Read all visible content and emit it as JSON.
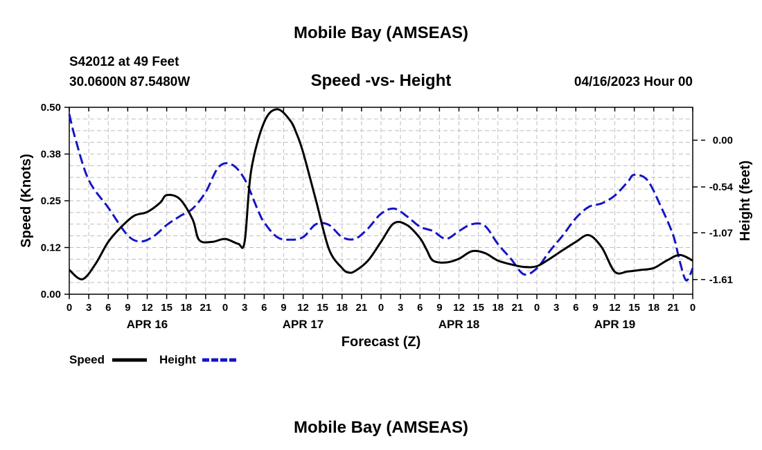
{
  "header": {
    "title": "Mobile Bay (AMSEAS)",
    "station": "S42012 at 49 Feet",
    "coords": "30.0600N  87.5480W",
    "subtitle": "Speed -vs- Height",
    "date": "04/16/2023 Hour 00"
  },
  "footer": {
    "title": "Mobile Bay (AMSEAS)"
  },
  "colors": {
    "speed": "#000000",
    "height": "#1414c8",
    "grid": "#bdbdbd"
  },
  "chart_data": {
    "type": "line",
    "title": "Speed -vs- Height",
    "xlabel": "Forecast (Z)",
    "ylabel": "Speed (Knots)",
    "y2label": "Height (feet)",
    "xlim": [
      0,
      96
    ],
    "ylim": [
      0,
      0.5
    ],
    "y2lim": [
      -1.78,
      0.38
    ],
    "grid": true,
    "x_tick_labels": [
      "0",
      "3",
      "6",
      "9",
      "12",
      "15",
      "18",
      "21",
      "0",
      "3",
      "6",
      "9",
      "12",
      "15",
      "18",
      "21",
      "0",
      "3",
      "6",
      "9",
      "12",
      "15",
      "18",
      "21",
      "0",
      "3",
      "6",
      "9",
      "12",
      "15",
      "18",
      "21",
      "0"
    ],
    "y_ticks": [
      "0.00",
      "0.12",
      "0.25",
      "0.38",
      "0.50"
    ],
    "y_tick_values": [
      0,
      0.125,
      0.25,
      0.375,
      0.5
    ],
    "y2_ticks": [
      "0.00",
      "-0.54",
      "-1.07",
      "-1.61"
    ],
    "y2_tick_values": [
      0,
      -0.54,
      -1.07,
      -1.61
    ],
    "day_labels": [
      {
        "label": "APR 16",
        "hour": 12
      },
      {
        "label": "APR 17",
        "hour": 36
      },
      {
        "label": "APR 18",
        "hour": 60
      },
      {
        "label": "APR 19",
        "hour": 84
      }
    ],
    "legend": [
      {
        "name": "Speed"
      },
      {
        "name": "Height"
      }
    ],
    "series": [
      {
        "name": "Speed",
        "axis": "left",
        "style": "solid",
        "x": [
          0,
          2,
          4,
          6,
          8,
          10,
          12,
          14,
          15,
          17,
          19,
          20,
          22,
          24,
          26,
          27,
          28,
          30,
          32,
          34,
          35,
          36,
          38,
          40,
          42,
          43,
          44,
          46,
          48,
          50,
          52,
          54,
          55,
          56,
          58,
          60,
          62,
          64,
          66,
          68,
          70,
          72,
          74,
          76,
          78,
          80,
          82,
          84,
          86,
          88,
          90,
          92,
          94,
          96
        ],
        "y": [
          0.065,
          0.04,
          0.08,
          0.14,
          0.18,
          0.21,
          0.22,
          0.245,
          0.265,
          0.255,
          0.2,
          0.145,
          0.14,
          0.148,
          0.135,
          0.14,
          0.33,
          0.46,
          0.495,
          0.465,
          0.43,
          0.38,
          0.25,
          0.12,
          0.07,
          0.058,
          0.062,
          0.09,
          0.14,
          0.19,
          0.185,
          0.15,
          0.12,
          0.09,
          0.085,
          0.095,
          0.115,
          0.11,
          0.09,
          0.08,
          0.073,
          0.075,
          0.095,
          0.118,
          0.14,
          0.158,
          0.125,
          0.06,
          0.061,
          0.065,
          0.07,
          0.09,
          0.105,
          0.09
        ]
      },
      {
        "name": "Height",
        "axis": "right",
        "style": "dashed",
        "x": [
          0,
          1,
          3,
          6,
          9,
          11,
          13,
          15,
          17,
          19,
          21,
          23,
          25,
          27,
          29,
          30,
          32,
          34,
          36,
          38,
          40,
          42,
          44,
          46,
          48,
          50,
          52,
          54,
          56,
          58,
          60,
          62,
          64,
          66,
          68,
          70,
          72,
          74,
          76,
          78,
          80,
          82,
          84,
          86,
          87,
          89,
          91,
          93,
          94,
          95,
          96
        ],
        "y": [
          0.3,
          0.0,
          -0.46,
          -0.78,
          -1.1,
          -1.17,
          -1.11,
          -0.98,
          -0.88,
          -0.79,
          -0.6,
          -0.31,
          -0.28,
          -0.45,
          -0.8,
          -0.95,
          -1.12,
          -1.15,
          -1.12,
          -0.97,
          -0.98,
          -1.12,
          -1.14,
          -1.02,
          -0.85,
          -0.79,
          -0.88,
          -1.0,
          -1.05,
          -1.14,
          -1.05,
          -0.97,
          -0.99,
          -1.2,
          -1.37,
          -1.55,
          -1.48,
          -1.28,
          -1.1,
          -0.9,
          -0.77,
          -0.73,
          -0.64,
          -0.48,
          -0.4,
          -0.46,
          -0.75,
          -1.1,
          -1.4,
          -1.62,
          -1.48
        ]
      }
    ]
  }
}
